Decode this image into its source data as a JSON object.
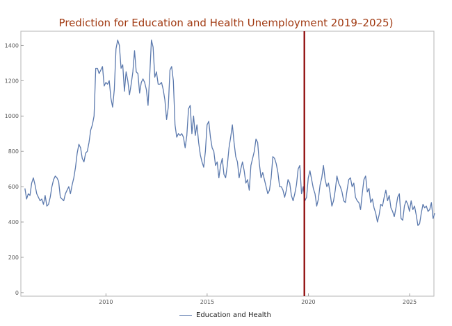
{
  "chart_data": {
    "type": "line",
    "title": "Prediction for Education and Health Unemployment 2019–2025)",
    "xlabel": "",
    "ylabel": "",
    "xlim": [
      2005.8,
      2026.2
    ],
    "ylim": [
      -20,
      1480
    ],
    "x_ticks": [
      2010,
      2015,
      2020,
      2025
    ],
    "y_ticks": [
      0,
      200,
      400,
      600,
      800,
      1000,
      1200,
      1400
    ],
    "grid": false,
    "legend_position": "bottom-center",
    "series_color": "#5b79ad",
    "marker_color": "#8b0000",
    "vertical_marker_x": 2019.8,
    "series": [
      {
        "name": "Education and Health",
        "x_start": 2006.0,
        "x_step": 0.0833,
        "values": [
          590,
          530,
          560,
          550,
          620,
          650,
          610,
          560,
          540,
          520,
          530,
          500,
          550,
          490,
          500,
          540,
          600,
          640,
          660,
          650,
          630,
          540,
          530,
          520,
          560,
          580,
          600,
          560,
          610,
          650,
          710,
          790,
          840,
          820,
          760,
          740,
          790,
          800,
          850,
          920,
          950,
          1000,
          1270,
          1270,
          1240,
          1260,
          1280,
          1170,
          1190,
          1180,
          1200,
          1100,
          1050,
          1150,
          1380,
          1430,
          1400,
          1270,
          1290,
          1140,
          1250,
          1200,
          1120,
          1180,
          1250,
          1370,
          1250,
          1240,
          1130,
          1190,
          1210,
          1190,
          1150,
          1060,
          1230,
          1430,
          1390,
          1220,
          1250,
          1180,
          1180,
          1190,
          1150,
          1090,
          980,
          1050,
          1260,
          1280,
          1200,
          950,
          880,
          900,
          890,
          900,
          880,
          820,
          890,
          1040,
          1060,
          900,
          1000,
          890,
          950,
          850,
          780,
          740,
          710,
          800,
          950,
          970,
          880,
          820,
          800,
          720,
          740,
          650,
          720,
          760,
          670,
          650,
          720,
          820,
          880,
          950,
          850,
          770,
          740,
          650,
          700,
          740,
          690,
          620,
          640,
          580,
          720,
          760,
          800,
          870,
          850,
          730,
          650,
          680,
          640,
          600,
          560,
          580,
          650,
          770,
          760,
          730,
          680,
          600,
          600,
          580,
          540,
          580,
          640,
          620,
          550,
          520,
          560,
          610,
          700,
          720,
          560,
          600,
          520,
          540,
          650,
          690,
          640,
          590,
          560,
          490,
          530,
          610,
          650,
          720,
          640,
          600,
          620,
          560,
          490,
          520,
          580,
          660,
          620,
          600,
          570,
          520,
          510,
          580,
          640,
          650,
          600,
          620,
          540,
          520,
          510,
          470,
          560,
          640,
          660,
          570,
          590,
          510,
          530,
          480,
          450,
          400,
          440,
          500,
          490,
          540,
          580,
          520,
          550,
          480,
          460,
          430,
          480,
          540,
          560,
          420,
          410,
          490,
          520,
          500,
          460,
          520,
          470,
          490,
          440,
          380,
          390,
          450,
          500,
          480,
          490,
          460,
          470,
          510,
          420,
          450
        ]
      }
    ]
  }
}
